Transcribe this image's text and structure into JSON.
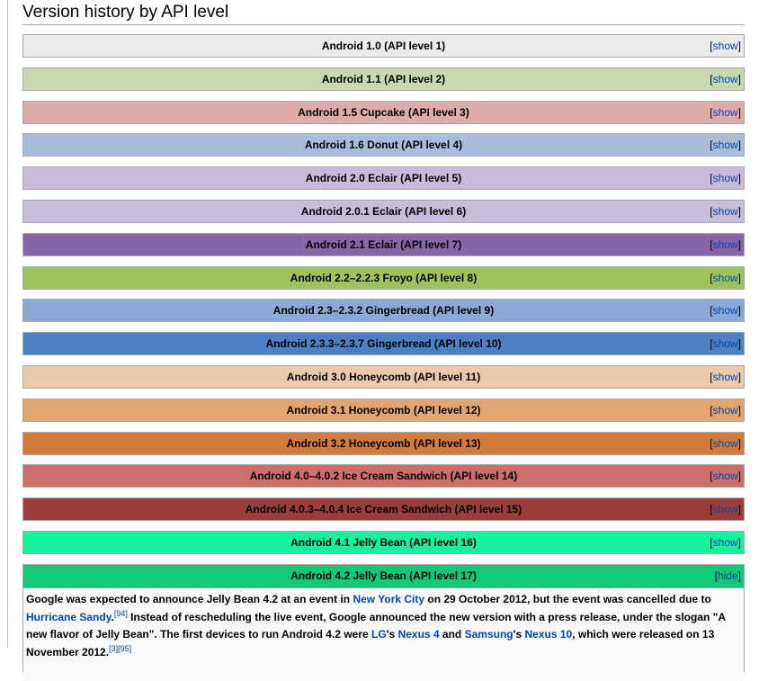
{
  "section": {
    "title": "Version history by API level"
  },
  "toggle": {
    "open_bracket": "[",
    "close_bracket": "]",
    "show_label": "show",
    "hide_label": "hide"
  },
  "versions": [
    {
      "title": "Android 1.0 (API level 1)",
      "color": "#ebebeb"
    },
    {
      "title": "Android 1.1 (API level 2)",
      "color": "#c9d8b0"
    },
    {
      "title": "Android 1.5 Cupcake (API level 3)",
      "color": "#dfaaaa"
    },
    {
      "title": "Android 1.6 Donut (API level 4)",
      "color": "#a9bcd9"
    },
    {
      "title": "Android 2.0 Eclair (API level 5)",
      "color": "#c9bad9"
    },
    {
      "title": "Android 2.0.1 Eclair (API level 6)",
      "color": "#c7bcd9"
    },
    {
      "title": "Android 2.1 Eclair (API level 7)",
      "color": "#8766a7"
    },
    {
      "title": "Android 2.2–2.2.3 Froyo (API level 8)",
      "color": "#9ec35e"
    },
    {
      "title": "Android 2.3–2.3.2 Gingerbread (API level 9)",
      "color": "#8aa9d6"
    },
    {
      "title": "Android 2.3.3–2.3.7 Gingerbread (API level 10)",
      "color": "#4c80c2"
    },
    {
      "title": "Android 3.0 Honeycomb (API level 11)",
      "color": "#ecc9ab"
    },
    {
      "title": "Android 3.1 Honeycomb (API level 12)",
      "color": "#e1a56f"
    },
    {
      "title": "Android 3.2 Honeycomb (API level 13)",
      "color": "#d17c3a"
    },
    {
      "title": "Android 4.0–4.0.2 Ice Cream Sandwich (API level 14)",
      "color": "#cd6f6a"
    },
    {
      "title": "Android 4.0.3–4.0.4 Ice Cream Sandwich (API level 15)",
      "color": "#9b3d3d"
    },
    {
      "title": "Android 4.1 Jelly Bean (API level 16)",
      "color": "#17f09c"
    }
  ],
  "expanded": {
    "title": "Android 4.2 Jelly Bean (API level 17)",
    "color": "#10c97b",
    "text_1": "Google was expected to announce Jelly Bean 4.2 at an event in ",
    "link_nyc": "New York City",
    "text_2": " on 29 October 2012, but the event was cancelled due to ",
    "link_sandy": "Hurricane Sandy",
    "ref_94": "[94]",
    "text_3": " Instead of rescheduling the live event, Google announced the new version with a press release, under the slogan \"A new flavor of Jelly Bean\". The first devices to run Android 4.2 were ",
    "link_lg": "LG",
    "text_4": "'s ",
    "link_nexus4": "Nexus 4",
    "text_5": " and ",
    "link_samsung": "Samsung",
    "text_6": "'s ",
    "link_nexus10": "Nexus 10",
    "text_7": ", which were released on 13 November 2012.",
    "ref_3_95": "[3][95]"
  }
}
